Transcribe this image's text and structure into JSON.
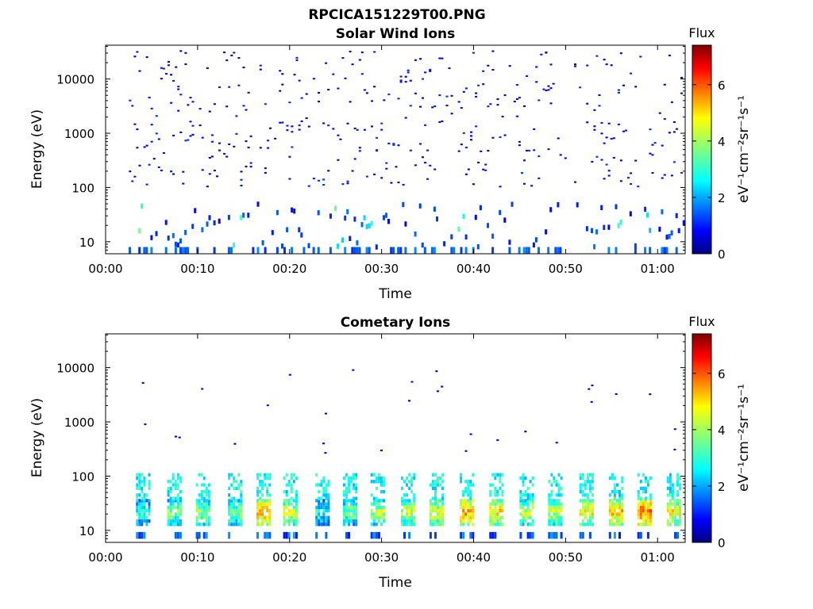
{
  "figure": {
    "title": "RPCICA151229T00.PNG"
  },
  "colormap": {
    "stops": [
      "#00007f",
      "#0000ff",
      "#0080ff",
      "#00ffff",
      "#80ff80",
      "#ffff00",
      "#ff8000",
      "#ff0000",
      "#7f0000"
    ]
  },
  "chart_data": [
    {
      "type": "heatmap",
      "title": "Solar Wind Ions",
      "xlabel": "Time",
      "ylabel": "Energy (eV)",
      "yscale": "log",
      "xlim_minutes": [
        0,
        63
      ],
      "ylim": [
        6,
        42000
      ],
      "x_ticks": [
        "00:00",
        "00:10",
        "00:20",
        "00:30",
        "00:40",
        "00:50",
        "01:00"
      ],
      "y_ticks": [
        "10",
        "100",
        "1000",
        "10000"
      ],
      "colorbar": {
        "label": "Flux",
        "unit_label": "eV⁻¹cm⁻²sr⁻¹s⁻¹",
        "range": [
          0,
          7.4
        ],
        "ticks": [
          "0",
          "2",
          "4",
          "6"
        ]
      },
      "grid": false,
      "description_of_values": "Sparse single-pixel counts (mostly log flux 0.5–1.5, dark blue) scattered between ~100 eV and ~30 keV from about 00:02 to 01:03; denser blue/cyan columns (log flux 1–3.5) at 6–40 eV, with brief cyan/green bursts near 00:04, 00:14, 00:25, 00:28, 00:38, 00:56, 00:59."
    },
    {
      "type": "heatmap",
      "title": "Cometary Ions",
      "xlabel": "Time",
      "ylabel": "Energy (eV)",
      "yscale": "log",
      "xlim_minutes": [
        0,
        63
      ],
      "ylim": [
        6,
        42000
      ],
      "x_ticks": [
        "00:00",
        "00:10",
        "00:20",
        "00:30",
        "00:40",
        "00:50",
        "01:00"
      ],
      "y_ticks": [
        "10",
        "100",
        "1000",
        "10000"
      ],
      "colorbar": {
        "label": "Flux",
        "unit_label": "eV⁻¹cm⁻²sr⁻¹s⁻¹",
        "range": [
          0,
          7.4
        ],
        "ticks": [
          "0",
          "2",
          "4",
          "6"
        ]
      },
      "grid": false,
      "burst_times_minutes": [
        3.8,
        7.2,
        10.3,
        13.8,
        16.9,
        19.8,
        23.3,
        26.3,
        29.3,
        32.6,
        35.7,
        39.0,
        42.2,
        45.5,
        48.6,
        52.0,
        55.2,
        58.3,
        61.5
      ],
      "burst_peak_log_flux": [
        4.0,
        4.5,
        4.6,
        4.6,
        5.8,
        5.0,
        3.8,
        4.4,
        4.8,
        5.0,
        5.2,
        6.0,
        5.6,
        5.0,
        5.0,
        5.4,
        5.8,
        6.4,
        5.4
      ],
      "description_of_values": "Periodic bursts roughly every 3.2 minutes with flux peaks (yellow/orange, log flux ~4.5–6.5) at 15–30 eV, cyan/green extending up to ~100 eV, plus sparse blue points at 200 eV–10 keV."
    }
  ]
}
